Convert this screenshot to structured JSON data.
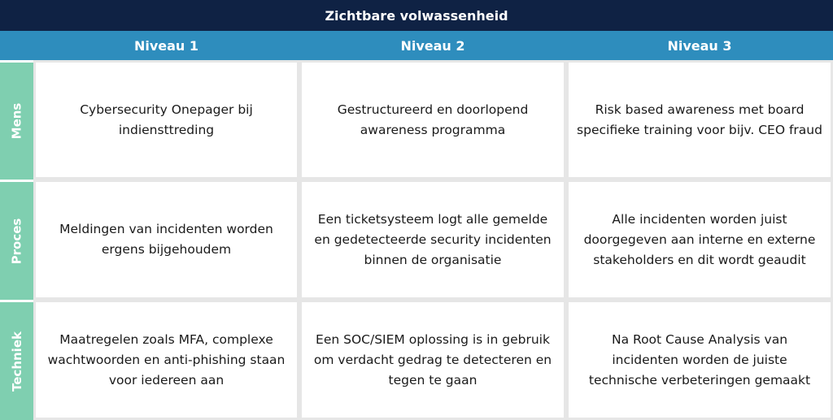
{
  "title": "Zichtbare volwassenheid",
  "columns": [
    "Niveau 1",
    "Niveau 2",
    "Niveau 3"
  ],
  "rows": [
    {
      "label": "Mens",
      "cells": [
        "Cybersecurity Onepager bij indiensttreding",
        "Gestructureerd en doorlopend awareness programma",
        "Risk based awareness met board specifieke training voor bijv. CEO fraud"
      ]
    },
    {
      "label": "Proces",
      "cells": [
        "Meldingen van incidenten worden ergens bijgehoudem",
        "Een ticketsysteem logt alle gemelde en gedetecteerde security incidenten binnen de organisatie",
        "Alle incidenten worden juist doorgegeven aan interne en externe stakeholders en dit wordt geaudit"
      ]
    },
    {
      "label": "Techniek",
      "cells": [
        "Maatregelen zoals MFA, complexe wachtwoorden en anti-phishing staan voor iedereen aan",
        "Een SOC/SIEM oplossing is in gebruik om verdacht gedrag te detecteren en tegen te gaan",
        "Na Root Cause Analysis van incidenten worden de juiste technische verbeteringen gemaakt"
      ]
    }
  ],
  "colors": {
    "title_bg": "#0f2244",
    "column_header_bg": "#2e8dbd",
    "row_header_bg": "#7fcfb0",
    "cell_bg": "#ffffff",
    "grid_line": "#e6e6e6"
  }
}
